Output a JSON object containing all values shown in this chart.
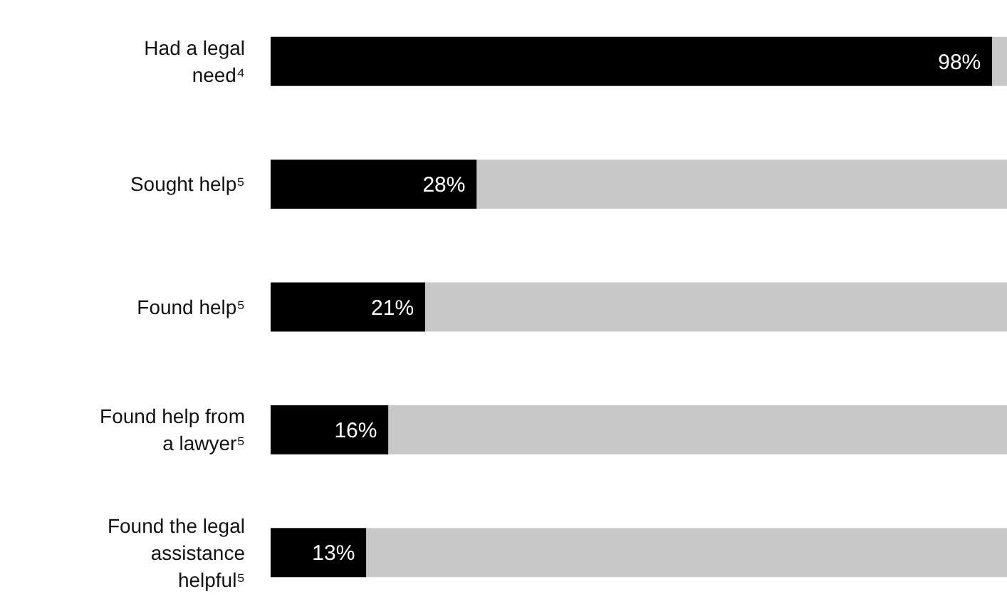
{
  "chart_data": {
    "type": "bar",
    "orientation": "horizontal",
    "stacked": true,
    "categories": [
      "Had a legal need⁴",
      "Sought help⁵",
      "Found help⁵",
      "Found help from a lawyer⁵",
      "Found the legal assistance helpful⁵"
    ],
    "xlim": [
      0,
      100
    ],
    "tick_labels": "y",
    "series": [
      {
        "color": "#000000",
        "values": [
          98,
          28,
          21,
          16,
          13
        ],
        "value_labels": [
          "98%",
          "28%",
          "21%",
          "16%",
          "13%"
        ]
      },
      {
        "color": "#c8c8c8",
        "values": [
          2,
          72,
          79,
          84,
          87
        ]
      }
    ]
  }
}
